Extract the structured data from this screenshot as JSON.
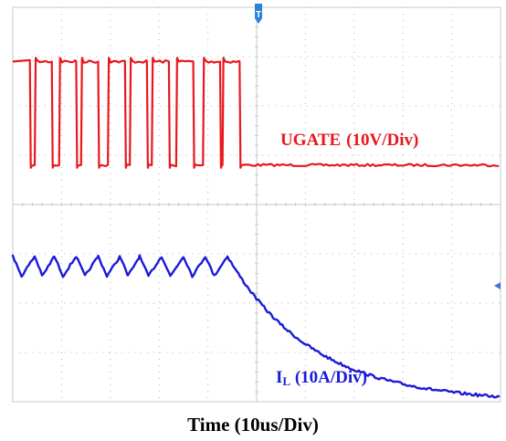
{
  "chart_data": {
    "type": "line",
    "grid": true,
    "xlabel": "Time (10us/Div)",
    "x_divisions": 10,
    "y_divisions": 8,
    "x_range_div": [
      0,
      10
    ],
    "series": [
      {
        "label_main": "UGATE",
        "label_scale": "(10V/Div)",
        "color": "#e8181e",
        "kind": "pwm",
        "low_level_div": 4.8,
        "high_level_div": 6.9,
        "pulse_starts_div": [
          0.0,
          0.45,
          0.95,
          1.4,
          1.95,
          2.4,
          2.85,
          3.35,
          3.9,
          4.3
        ],
        "pulse_width_div": 0.35,
        "switching_stops_div": 4.6
      },
      {
        "label_main": "I",
        "label_sub": "L",
        "label_scale": " (10A/Div)",
        "color": "#1a1ad8",
        "kind": "ripple_then_decay",
        "ripple_peaks_div": [
          0.0,
          0.45,
          0.85,
          1.3,
          1.75,
          2.2,
          2.6,
          3.05,
          3.5,
          3.95,
          4.4
        ],
        "ripple_high_div": 2.95,
        "ripple_low_div": 2.55,
        "decay_start_div": 4.4,
        "decay_end_div": 10.0,
        "decay_end_level_div": 0.1
      }
    ]
  },
  "ui": {
    "trigger_marker": "T"
  }
}
